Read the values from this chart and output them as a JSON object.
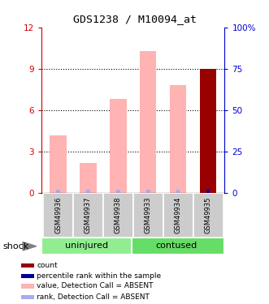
{
  "title": "GDS1238 / M10094_at",
  "samples": [
    "GSM49936",
    "GSM49937",
    "GSM49938",
    "GSM49933",
    "GSM49934",
    "GSM49935"
  ],
  "ylim_left": [
    0,
    12
  ],
  "ylim_right": [
    0,
    100
  ],
  "yticks_left": [
    0,
    3,
    6,
    9,
    12
  ],
  "ytick_labels_left": [
    "0",
    "3",
    "6",
    "9",
    "12"
  ],
  "yticks_right": [
    0,
    25,
    50,
    75,
    100
  ],
  "ytick_labels_right": [
    "0",
    "25",
    "50",
    "75",
    "100%"
  ],
  "value_bars": [
    4.2,
    2.2,
    6.8,
    10.3,
    7.8,
    9.0
  ],
  "count_bar_idx": 5,
  "count_bar_value": 9.0,
  "value_bar_color": "#FFB3B3",
  "rank_bar_color": "#AAAAEE",
  "count_bar_color": "#990000",
  "count_dot_color": "#000099",
  "left_color": "#CC0000",
  "right_color": "#0000CC",
  "group_bg_uninjured": "#90EE90",
  "group_bg_contused": "#66DD66",
  "sample_bg": "#CCCCCC",
  "legend_items": [
    {
      "color": "#990000",
      "label": "count"
    },
    {
      "color": "#000099",
      "label": "percentile rank within the sample"
    },
    {
      "color": "#FFB3B3",
      "label": "value, Detection Call = ABSENT"
    },
    {
      "color": "#AAAAEE",
      "label": "rank, Detection Call = ABSENT"
    }
  ]
}
